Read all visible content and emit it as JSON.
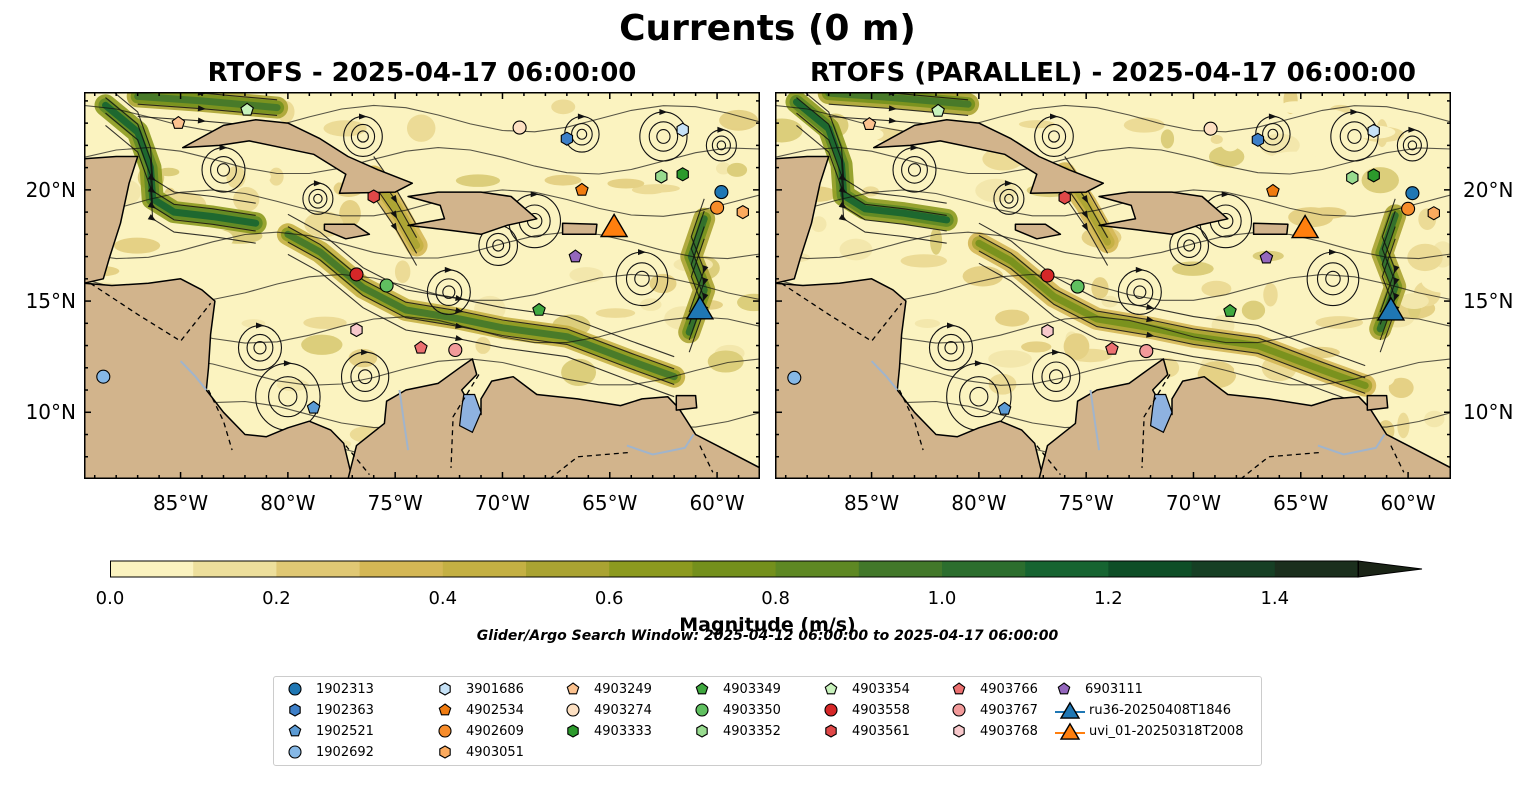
{
  "figure": {
    "title": "Currents (0 m)",
    "left_panel_title": "RTOFS - 2025-04-17 06:00:00",
    "right_panel_title": "RTOFS (PARALLEL) - 2025-04-17 06:00:00",
    "lon_ticks": [
      "85°W",
      "80°W",
      "75°W",
      "70°W",
      "65°W",
      "60°W"
    ],
    "lon_values": [
      -85,
      -80,
      -75,
      -70,
      -65,
      -60
    ],
    "lat_ticks": [
      "10°N",
      "15°N",
      "20°N"
    ],
    "lat_values": [
      10,
      15,
      20
    ],
    "lon_range": [
      -89.5,
      -58
    ],
    "lat_range": [
      7,
      24.4
    ],
    "colors": {
      "land": "#d2b48c",
      "ocean_low": "#fbf3c0",
      "river": "#a0b4cc",
      "lake": "#8eb2e0"
    }
  },
  "colorbar": {
    "title": "Magnitude (m/s)",
    "ticks": [
      "0.0",
      "0.2",
      "0.4",
      "0.6",
      "0.8",
      "1.0",
      "1.2",
      "1.4"
    ],
    "tick_values": [
      0,
      0.2,
      0.4,
      0.6,
      0.8,
      1.0,
      1.2,
      1.4
    ],
    "range": [
      0,
      1.5
    ],
    "extend": "max",
    "colors": [
      "#fbf3c0",
      "#eddf9c",
      "#e0c874",
      "#d4b755",
      "#c4b043",
      "#aaa332",
      "#8c9a1f",
      "#74901c",
      "#5e8823",
      "#42782a",
      "#2c6e2e",
      "#166431",
      "#0e4e27",
      "#163f24",
      "#1b2f1d",
      "#1a2416"
    ]
  },
  "search_window": "Glider/Argo Search Window: 2025-04-12 06:00:00 to 2025-04-17 06:00:00",
  "legend": {
    "items": [
      {
        "label": "1902313",
        "marker": "circle",
        "color": "#1f77b4"
      },
      {
        "label": "1902363",
        "marker": "hexagon",
        "color": "#3d7fc8"
      },
      {
        "label": "1902521",
        "marker": "pentagon",
        "color": "#5b9bd5"
      },
      {
        "label": "1902692",
        "marker": "circle",
        "color": "#86b8e6"
      },
      {
        "label": "3901686",
        "marker": "hexagon",
        "color": "#c6e2f7"
      },
      {
        "label": "4902534",
        "marker": "pentagon",
        "color": "#f07b10"
      },
      {
        "label": "4902609",
        "marker": "circle",
        "color": "#f78c2a"
      },
      {
        "label": "4903051",
        "marker": "hexagon",
        "color": "#fbaa5e"
      },
      {
        "label": "4903249",
        "marker": "pentagon",
        "color": "#fcc28f"
      },
      {
        "label": "4903274",
        "marker": "circle",
        "color": "#fde0c2"
      },
      {
        "label": "4903333",
        "marker": "hexagon",
        "color": "#2c9a2c"
      },
      {
        "label": "4903349",
        "marker": "pentagon",
        "color": "#3fa83f"
      },
      {
        "label": "4903350",
        "marker": "circle",
        "color": "#60c060"
      },
      {
        "label": "4903352",
        "marker": "hexagon",
        "color": "#98db8f"
      },
      {
        "label": "4903354",
        "marker": "pentagon",
        "color": "#c8f2bc"
      },
      {
        "label": "4903558",
        "marker": "circle",
        "color": "#d62728"
      },
      {
        "label": "4903561",
        "marker": "hexagon",
        "color": "#e04848"
      },
      {
        "label": "4903766",
        "marker": "pentagon",
        "color": "#ec7070"
      },
      {
        "label": "4903767",
        "marker": "circle",
        "color": "#f29a9a"
      },
      {
        "label": "4903768",
        "marker": "hexagon",
        "color": "#f8c9cc"
      },
      {
        "label": "6903111",
        "marker": "pentagon",
        "color": "#9467bd"
      },
      {
        "label": "ru36-20250408T1846",
        "marker": "triangle-line",
        "color": "#1f77b4"
      },
      {
        "label": "uvi_01-20250318T2008",
        "marker": "triangle-line",
        "color": "#ff7f0e"
      }
    ]
  },
  "platforms": [
    {
      "id": "1902313",
      "lon": -59.8,
      "lat": 19.9
    },
    {
      "id": "1902363",
      "lon": -67.0,
      "lat": 22.3
    },
    {
      "id": "1902521",
      "lon": -78.8,
      "lat": 10.2
    },
    {
      "id": "1902692",
      "lon": -88.6,
      "lat": 11.6
    },
    {
      "id": "3901686",
      "lon": -61.6,
      "lat": 22.7
    },
    {
      "id": "4902534",
      "lon": -66.3,
      "lat": 20.0
    },
    {
      "id": "4902609",
      "lon": -60.0,
      "lat": 19.2
    },
    {
      "id": "4903051",
      "lon": -58.8,
      "lat": 19.0
    },
    {
      "id": "4903249",
      "lon": -85.1,
      "lat": 23.0
    },
    {
      "id": "4903274",
      "lon": -69.2,
      "lat": 22.8
    },
    {
      "id": "4903333",
      "lon": -61.6,
      "lat": 20.7
    },
    {
      "id": "4903349",
      "lon": -68.3,
      "lat": 14.6
    },
    {
      "id": "4903350",
      "lon": -75.4,
      "lat": 15.7
    },
    {
      "id": "4903352",
      "lon": -62.6,
      "lat": 20.6
    },
    {
      "id": "4903354",
      "lon": -81.9,
      "lat": 23.6
    },
    {
      "id": "4903558",
      "lon": -76.8,
      "lat": 16.2
    },
    {
      "id": "4903561",
      "lon": -76.0,
      "lat": 19.7
    },
    {
      "id": "4903766",
      "lon": -73.8,
      "lat": 12.9
    },
    {
      "id": "4903767",
      "lon": -72.2,
      "lat": 12.8
    },
    {
      "id": "4903768",
      "lon": -76.8,
      "lat": 13.7
    },
    {
      "id": "6903111",
      "lon": -66.6,
      "lat": 17.0
    },
    {
      "id": "ru36-20250408T1846",
      "lon": -60.8,
      "lat": 14.6
    },
    {
      "id": "uvi_01-20250318T2008",
      "lon": -64.8,
      "lat": 18.3
    }
  ]
}
